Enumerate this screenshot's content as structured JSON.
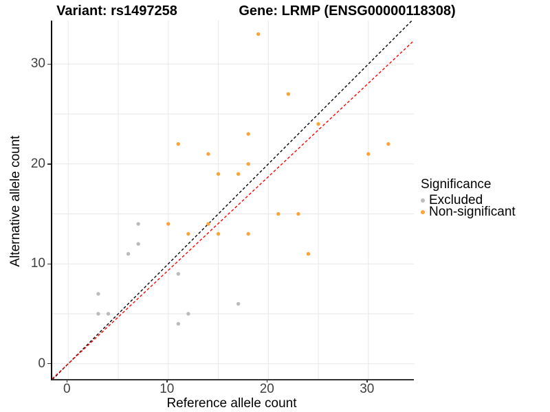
{
  "titles": {
    "variant": "Variant: rs1497258",
    "gene": "Gene: LRMP (ENSG00000118308)"
  },
  "axes": {
    "x_label": "Reference allele count",
    "y_label": "Alternative allele count",
    "x_ticks": [
      0,
      10,
      20,
      30
    ],
    "y_ticks": [
      0,
      10,
      20,
      30
    ]
  },
  "legend": {
    "title": "Significance",
    "items": [
      {
        "label": "Excluded",
        "color": "#bbbbbb"
      },
      {
        "label": "Non-significant",
        "color": "#faa43a"
      }
    ]
  },
  "colors": {
    "excluded": "#bbbbbb",
    "non_significant": "#faa43a",
    "identity_line": "#000000",
    "fit_line": "#ff0000",
    "gridline": "#e7e7e7"
  },
  "chart_data": {
    "type": "scatter",
    "title": "Variant: rs1497258 / Gene: LRMP (ENSG00000118308)",
    "xlabel": "Reference allele count",
    "ylabel": "Alternative allele count",
    "xlim": [
      -1.6,
      34.55
    ],
    "ylim": [
      -1.53,
      34.35
    ],
    "grid": true,
    "grid_step": 5,
    "legend_position": "right",
    "series": [
      {
        "name": "Excluded",
        "color": "#bbbbbb",
        "points": [
          [
            3,
            5
          ],
          [
            3,
            7
          ],
          [
            4,
            5
          ],
          [
            6,
            11
          ],
          [
            7,
            12
          ],
          [
            7,
            14
          ],
          [
            11,
            4
          ],
          [
            11,
            9
          ],
          [
            12,
            5
          ],
          [
            17,
            6
          ]
        ]
      },
      {
        "name": "Non-significant",
        "color": "#faa43a",
        "points": [
          [
            10,
            14
          ],
          [
            11,
            22
          ],
          [
            12,
            13
          ],
          [
            14,
            14
          ],
          [
            14,
            21
          ],
          [
            15,
            13
          ],
          [
            15,
            19
          ],
          [
            17,
            19
          ],
          [
            18,
            13
          ],
          [
            18,
            20
          ],
          [
            18,
            23
          ],
          [
            19,
            33
          ],
          [
            21,
            15
          ],
          [
            22,
            27
          ],
          [
            23,
            15
          ],
          [
            24,
            11
          ],
          [
            25,
            24
          ],
          [
            30,
            21
          ],
          [
            32,
            22
          ]
        ]
      }
    ],
    "lines": [
      {
        "name": "identity-line",
        "slope": 1.0,
        "intercept": 0,
        "color": "#000000",
        "dash": "4 3"
      },
      {
        "name": "fit-line",
        "slope": 0.936,
        "intercept": 0,
        "color": "#ff0000",
        "dash": "4 3"
      }
    ]
  }
}
